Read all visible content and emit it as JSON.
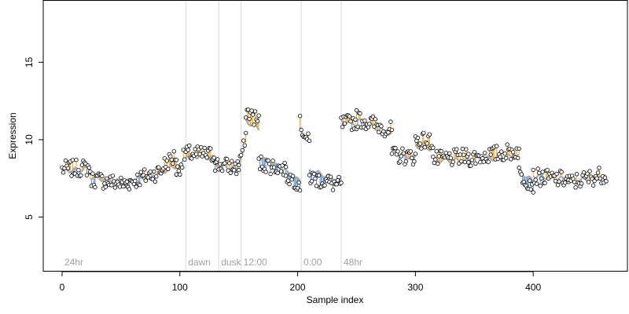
{
  "chart_data": {
    "type": "scatter",
    "title": "",
    "xlabel": "Sample index",
    "ylabel": "Expression",
    "xlim": [
      -16,
      480
    ],
    "ylim": [
      1.5,
      19
    ],
    "x_ticks": [
      0,
      100,
      200,
      300,
      400
    ],
    "y_ticks": [
      5,
      10,
      15
    ],
    "grid": false,
    "legend": "none",
    "colors": {
      "points": "#000000",
      "fit_line": "#aaaaaa",
      "residual_pos": "#f5a623",
      "residual_neg": "#5b8fd8",
      "phase_lines": "#d9d9d9",
      "phase_text": "#a0a0a0"
    },
    "phase_markers": [
      {
        "x": 0,
        "label": "24hr",
        "line": false
      },
      {
        "x": 105,
        "label": "dawn",
        "line": true
      },
      {
        "x": 133,
        "label": "dusk",
        "line": true
      },
      {
        "x": 152,
        "label": "12:00",
        "line": true
      },
      {
        "x": 203,
        "label": "0:00",
        "line": true
      },
      {
        "x": 237,
        "label": "48hr",
        "line": true
      }
    ],
    "segments": [
      {
        "x": [
          0,
          24
        ],
        "fit": [
          8.0,
          8.1
        ],
        "obs": [
          8.1,
          8.2
        ]
      },
      {
        "x": [
          24,
          55
        ],
        "fit": [
          7.6,
          7.2
        ],
        "obs": [
          7.5,
          7.1
        ]
      },
      {
        "x": [
          55,
          85
        ],
        "fit": [
          7.3,
          7.9
        ],
        "obs": [
          7.2,
          8.0
        ]
      },
      {
        "x": [
          85,
          97
        ],
        "fit": [
          7.9,
          8.3
        ],
        "obs": [
          8.3,
          9.0
        ]
      },
      {
        "x": [
          97,
          106
        ],
        "fit": [
          7.7,
          9.1
        ],
        "obs": [
          7.8,
          9.3
        ]
      },
      {
        "x": [
          106,
          130
        ],
        "fit": [
          9.0,
          8.8
        ],
        "obs": [
          9.1,
          9.0
        ]
      },
      {
        "x": [
          130,
          150
        ],
        "fit": [
          8.4,
          8.1
        ],
        "obs": [
          8.4,
          8.2
        ]
      },
      {
        "x": [
          150,
          156
        ],
        "fit": [
          8.5,
          9.6
        ],
        "obs": [
          8.6,
          9.9
        ]
      },
      {
        "x": [
          156,
          167
        ],
        "fit": [
          11.2,
          10.7
        ],
        "obs": [
          11.9,
          11.2
        ]
      },
      {
        "x": [
          167,
          190
        ],
        "fit": [
          8.9,
          8.0
        ],
        "obs": [
          8.5,
          8.1
        ]
      },
      {
        "x": [
          190,
          202
        ],
        "fit": [
          7.9,
          7.3
        ],
        "obs": [
          7.7,
          7.2
        ]
      },
      {
        "x": [
          202,
          210
        ],
        "fit": [
          10.8,
          9.8
        ],
        "obs": [
          11.0,
          9.7
        ]
      },
      {
        "x": [
          210,
          237
        ],
        "fit": [
          8.0,
          7.4
        ],
        "obs": [
          7.6,
          7.0
        ]
      },
      {
        "x": [
          237,
          250
        ],
        "fit": [
          11.2,
          11.0
        ],
        "obs": [
          11.0,
          11.2
        ]
      },
      {
        "x": [
          250,
          280
        ],
        "fit": [
          11.3,
          10.3
        ],
        "obs": [
          11.4,
          10.6
        ]
      },
      {
        "x": [
          280,
          300
        ],
        "fit": [
          9.2,
          8.8
        ],
        "obs": [
          9.0,
          8.9
        ]
      },
      {
        "x": [
          300,
          315
        ],
        "fit": [
          9.6,
          9.4
        ],
        "obs": [
          10.0,
          9.9
        ]
      },
      {
        "x": [
          315,
          345
        ],
        "fit": [
          8.7,
          8.6
        ],
        "obs": [
          8.7,
          8.9
        ]
      },
      {
        "x": [
          345,
          388
        ],
        "fit": [
          8.7,
          8.9
        ],
        "obs": [
          8.8,
          9.3
        ]
      },
      {
        "x": [
          388,
          400
        ],
        "fit": [
          8.0,
          7.3
        ],
        "obs": [
          7.8,
          7.1
        ]
      },
      {
        "x": [
          400,
          430
        ],
        "fit": [
          7.7,
          7.4
        ],
        "obs": [
          7.6,
          7.4
        ]
      },
      {
        "x": [
          430,
          462
        ],
        "fit": [
          7.3,
          7.6
        ],
        "obs": [
          7.2,
          7.8
        ]
      }
    ]
  }
}
